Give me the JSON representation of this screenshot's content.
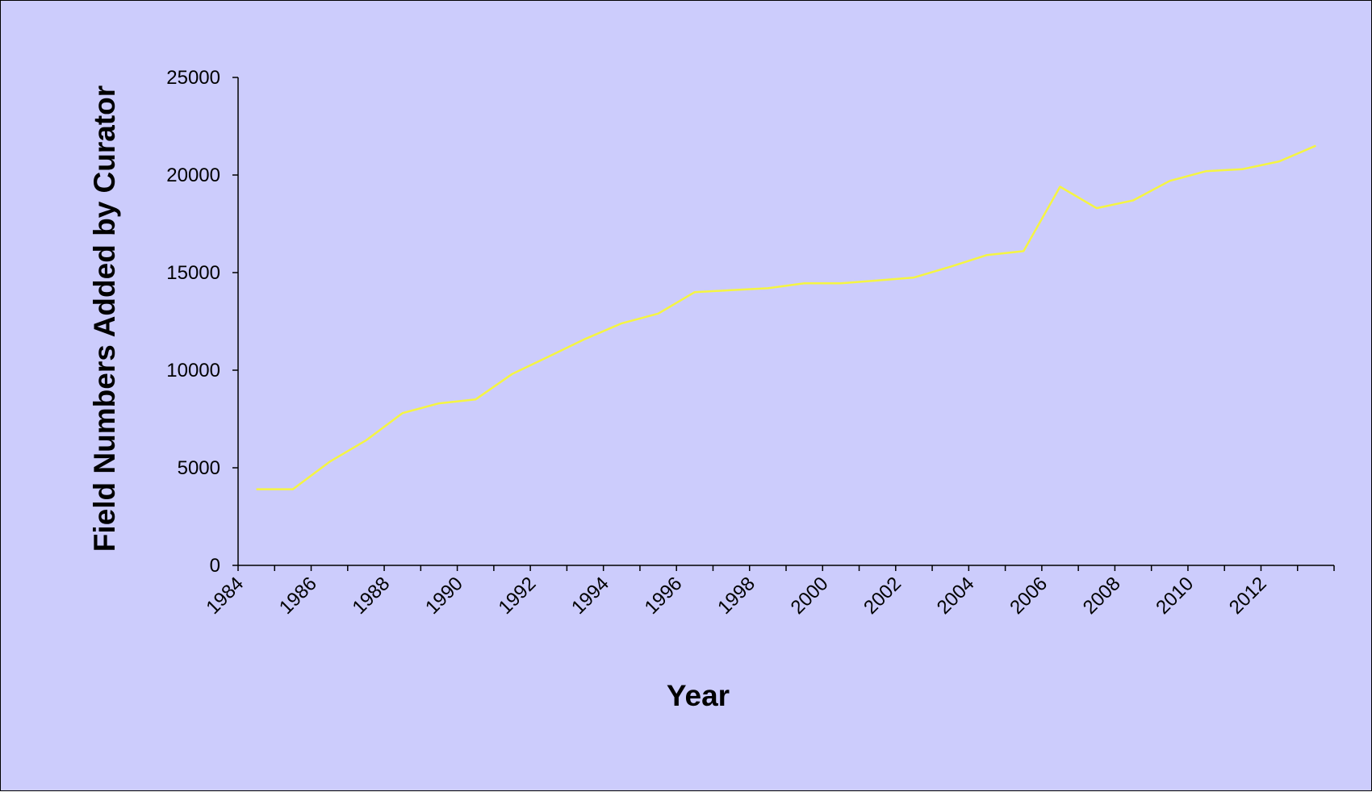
{
  "chart_data": {
    "type": "line",
    "title": "",
    "xlabel": "Year",
    "ylabel": "Field Numbers Added by Curator",
    "ylim": [
      0,
      25000
    ],
    "y_ticks": [
      "0",
      "5000",
      "10000",
      "15000",
      "20000",
      "25000"
    ],
    "x_tick_labels": [
      "1984",
      "1986",
      "1988",
      "1990",
      "1992",
      "1994",
      "1996",
      "1998",
      "2000",
      "2002",
      "2004",
      "2006",
      "2008",
      "2010",
      "2012"
    ],
    "x": [
      1984,
      1985,
      1986,
      1987,
      1988,
      1989,
      1990,
      1991,
      1992,
      1993,
      1994,
      1995,
      1996,
      1997,
      1998,
      1999,
      2000,
      2001,
      2002,
      2003,
      2004,
      2005,
      2006,
      2007,
      2008,
      2009,
      2010,
      2011,
      2012,
      2013
    ],
    "series": [
      {
        "values": [
          3900,
          3900,
          5300,
          6400,
          7800,
          8300,
          8500,
          9800,
          10700,
          11600,
          12400,
          12900,
          14000,
          14100,
          14200,
          14450,
          14450,
          14600,
          14750,
          15300,
          15900,
          16100,
          19400,
          18300,
          18700,
          19700,
          20200,
          20300,
          20700,
          21500
        ],
        "color": "#f5f542"
      }
    ],
    "grid": false,
    "legend": "none",
    "background": "#ccccfc"
  }
}
